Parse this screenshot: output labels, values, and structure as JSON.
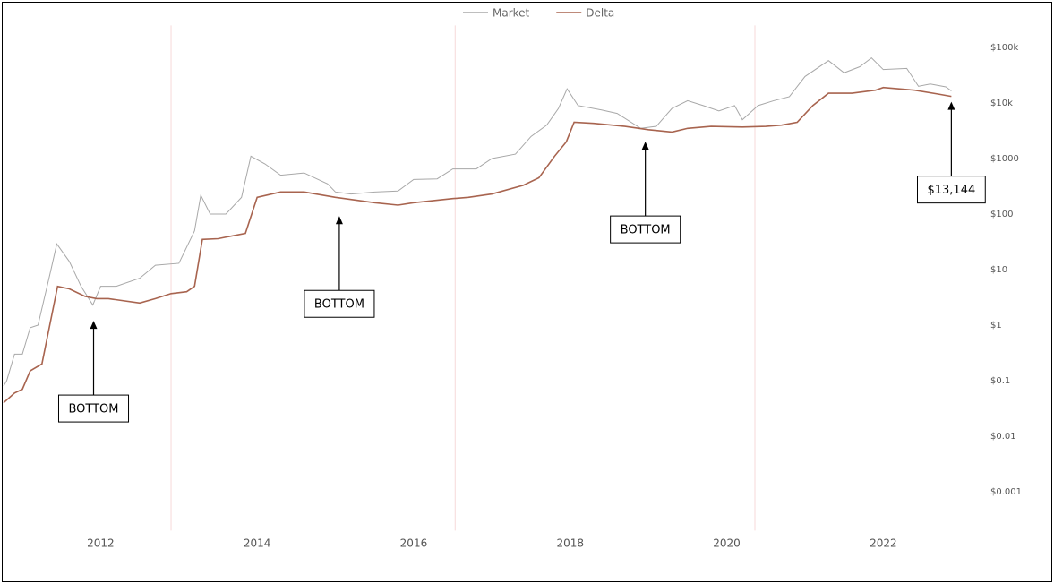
{
  "chart_data": {
    "type": "line",
    "log_scale": true,
    "grid": false,
    "legend_position": "top",
    "xlim": [
      2010.76,
      2022.9
    ],
    "xticks": [
      2012,
      2014,
      2016,
      2018,
      2020,
      2022
    ],
    "ylim": [
      0.0002,
      250000
    ],
    "yticks": [
      {
        "value": 100000,
        "label": "$100k"
      },
      {
        "value": 10000,
        "label": "$10k"
      },
      {
        "value": 1000,
        "label": "$1000"
      },
      {
        "value": 100,
        "label": "$100"
      },
      {
        "value": 10,
        "label": "$10"
      },
      {
        "value": 1,
        "label": "$1"
      },
      {
        "value": 0.1,
        "label": "$0.1"
      },
      {
        "value": 0.01,
        "label": "$0.01"
      },
      {
        "value": 0.001,
        "label": "$0.001"
      }
    ],
    "vlines": [
      2012.9,
      2016.53,
      2020.36
    ],
    "vline_color": "#f7d9d9",
    "series": [
      {
        "name": "Market",
        "color": "#a8a8a8",
        "x": [
          2010.76,
          2010.8,
          2010.9,
          2011.0,
          2011.1,
          2011.2,
          2011.35,
          2011.44,
          2011.6,
          2011.75,
          2011.9,
          2012.0,
          2012.2,
          2012.5,
          2012.7,
          2013.0,
          2013.2,
          2013.28,
          2013.4,
          2013.6,
          2013.8,
          2013.92,
          2014.1,
          2014.3,
          2014.6,
          2014.9,
          2015.0,
          2015.2,
          2015.5,
          2015.8,
          2016.0,
          2016.3,
          2016.5,
          2016.8,
          2017.0,
          2017.3,
          2017.5,
          2017.7,
          2017.85,
          2017.96,
          2018.1,
          2018.4,
          2018.6,
          2018.9,
          2019.1,
          2019.3,
          2019.5,
          2019.7,
          2019.9,
          2020.1,
          2020.2,
          2020.4,
          2020.6,
          2020.8,
          2021.0,
          2021.3,
          2021.5,
          2021.7,
          2021.85,
          2022.0,
          2022.3,
          2022.45,
          2022.6,
          2022.8,
          2022.87
        ],
        "values": [
          0.08,
          0.1,
          0.3,
          0.3,
          0.9,
          1.0,
          8,
          29,
          14,
          5,
          2.3,
          5,
          5,
          7,
          12,
          13,
          50,
          218,
          100,
          100,
          200,
          1100,
          800,
          500,
          550,
          350,
          250,
          230,
          250,
          260,
          420,
          430,
          650,
          650,
          1000,
          1200,
          2500,
          4000,
          8000,
          18000,
          9000,
          7500,
          6500,
          3500,
          3800,
          8000,
          11000,
          9000,
          7200,
          9000,
          5000,
          9000,
          11000,
          13000,
          30000,
          58000,
          35000,
          45000,
          65000,
          40000,
          42000,
          20000,
          22000,
          19500,
          16500
        ]
      },
      {
        "name": "Delta",
        "color": "#a8644f",
        "x": [
          2010.76,
          2010.9,
          2011.0,
          2011.1,
          2011.25,
          2011.35,
          2011.45,
          2011.6,
          2011.8,
          2011.95,
          2012.1,
          2012.5,
          2012.7,
          2012.9,
          2013.1,
          2013.2,
          2013.3,
          2013.5,
          2013.85,
          2014.0,
          2014.3,
          2014.6,
          2015.0,
          2015.5,
          2015.8,
          2016.0,
          2016.5,
          2016.7,
          2017.0,
          2017.4,
          2017.6,
          2017.8,
          2017.95,
          2018.05,
          2018.3,
          2018.7,
          2019.0,
          2019.3,
          2019.5,
          2019.8,
          2020.2,
          2020.5,
          2020.7,
          2020.9,
          2021.1,
          2021.3,
          2021.6,
          2021.9,
          2022.0,
          2022.4,
          2022.7,
          2022.87
        ],
        "values": [
          0.04,
          0.06,
          0.07,
          0.15,
          0.2,
          1.0,
          5,
          4.5,
          3.3,
          3,
          3,
          2.5,
          3,
          3.7,
          4,
          5,
          35,
          36,
          45,
          200,
          250,
          250,
          200,
          160,
          145,
          160,
          190,
          200,
          230,
          330,
          450,
          1100,
          2000,
          4500,
          4300,
          3800,
          3300,
          3000,
          3500,
          3800,
          3700,
          3800,
          4000,
          4500,
          9000,
          15000,
          15000,
          17000,
          19000,
          17000,
          14500,
          13144
        ]
      }
    ],
    "annotations": [
      {
        "text": "BOTTOM",
        "x": 2011.91,
        "y": 1.5
      },
      {
        "text": "BOTTOM",
        "x": 2015.05,
        "y": 115
      },
      {
        "text": "BOTTOM",
        "x": 2018.96,
        "y": 2520
      },
      {
        "text": "$13,144",
        "x": 2022.87,
        "y": 13144
      }
    ]
  }
}
